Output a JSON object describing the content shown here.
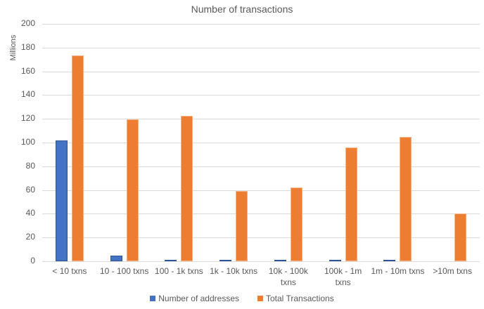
{
  "chart_data": {
    "type": "bar",
    "title": "Number of transactions",
    "xlabel": "",
    "ylabel": "Millions",
    "ylim": [
      0,
      200
    ],
    "yticks": [
      0,
      20,
      40,
      60,
      80,
      100,
      120,
      140,
      160,
      180,
      200
    ],
    "grid": true,
    "legend_position": "bottom",
    "categories": [
      "< 10 txns",
      "10 - 100 txns",
      "100 - 1k txns",
      "1k - 10k txns",
      "10k - 100k txns",
      "100k - 1m txns",
      "1m - 10m txns",
      ">10m txns"
    ],
    "series": [
      {
        "name": "Number of addresses",
        "color": "#4472c4",
        "values": [
          102,
          4.5,
          0.5,
          0.3,
          0.2,
          0.1,
          0.05,
          0
        ]
      },
      {
        "name": "Total Transactions",
        "color": "#ed7d31",
        "values": [
          173.5,
          119.5,
          122.5,
          59,
          62,
          96,
          105,
          40
        ]
      }
    ]
  }
}
